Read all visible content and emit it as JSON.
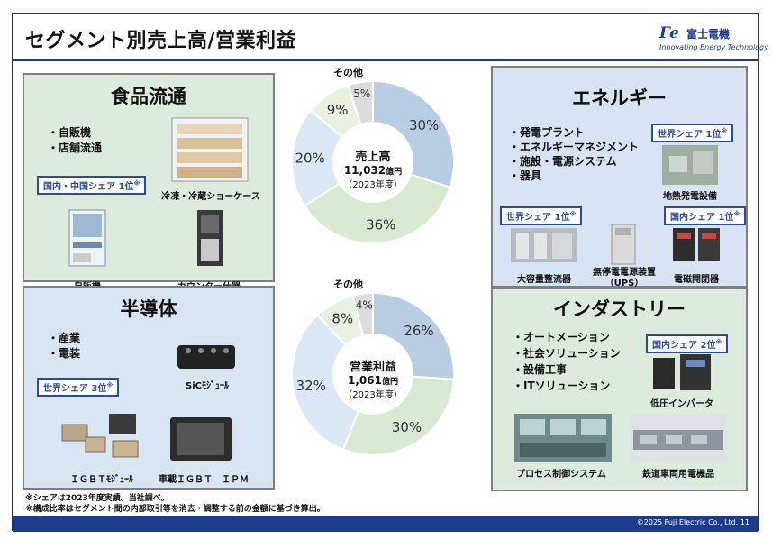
{
  "title": "セグメント別売上高/営業利益",
  "logo": {
    "name": "富士電機",
    "tagline": "Innovating Energy Technology",
    "mark": "Fe"
  },
  "food": {
    "heading": "食品流通",
    "bullets": [
      "自販機",
      "店舗流通"
    ],
    "badge": "国内・中国シェア 1位",
    "mark": "※",
    "captions": {
      "showcase": "冷凍・冷蔵ショーケース",
      "vending": "自販機",
      "counter": "カウンター什器"
    }
  },
  "semi": {
    "heading": "半導体",
    "bullets": [
      "産業",
      "電装"
    ],
    "badge": "世界シェア 3位",
    "mark": "※",
    "captions": {
      "sic": "SiCﾓｼﾞｭｰﾙ",
      "igbt": "ＩＧＢＴﾓｼﾞｭｰﾙ",
      "ipm": "車載ＩＧＢＴ　ＩＰＭ"
    }
  },
  "energy": {
    "heading": "エネルギー",
    "bullets": [
      "発電プラント",
      "エネルギーマネジメント",
      "施設・電源システム",
      "器具"
    ],
    "badge_world": "世界シェア 1位",
    "badge_world2": "世界シェア 1位",
    "badge_domestic": "国内シェア 1位",
    "mark": "※",
    "captions": {
      "geo": "地熱発電設備",
      "rect": "大容量整流器",
      "ups1": "無停電電源装置",
      "ups2": "（UPS）",
      "switch": "電磁開閉器"
    }
  },
  "industry": {
    "heading": "インダストリー",
    "bullets": [
      "オートメーション",
      "社会ソリューション",
      "設備工事",
      "ITソリューション"
    ],
    "badge": "国内シェア 2位",
    "mark": "※",
    "captions": {
      "inverter": "低圧インバータ",
      "control": "プロセス制御システム",
      "rail": "鉄道車両用電機品"
    }
  },
  "chart_data": [
    {
      "type": "pie",
      "center_title": "売上高",
      "center_value": "11,032",
      "center_unit": "億円",
      "center_note": "（2023年度）",
      "slices": [
        {
          "name": "エネルギー",
          "value": 30,
          "label": "30%",
          "color": "#b8cce4"
        },
        {
          "name": "インダストリー",
          "value": 36,
          "label": "36%",
          "color": "#d8ead2"
        },
        {
          "name": "半導体",
          "value": 20,
          "label": "20%",
          "color": "#dbe9f6"
        },
        {
          "name": "食品流通",
          "value": 9,
          "label": "9%",
          "color": "#e8f2e2"
        },
        {
          "name": "その他",
          "value": 5,
          "label": "5%",
          "color": "#dcdcdc"
        }
      ],
      "other_label": "その他"
    },
    {
      "type": "pie",
      "center_title": "営業利益",
      "center_value": "1,061",
      "center_unit": "億円",
      "center_note": "（2023年度）",
      "slices": [
        {
          "name": "エネルギー",
          "value": 26,
          "label": "26%",
          "color": "#b8cce4"
        },
        {
          "name": "インダストリー",
          "value": 30,
          "label": "30%",
          "color": "#d8ead2"
        },
        {
          "name": "半導体",
          "value": 32,
          "label": "32%",
          "color": "#dbe9f6"
        },
        {
          "name": "食品流通",
          "value": 8,
          "label": "8%",
          "color": "#e8f2e2"
        },
        {
          "name": "その他",
          "value": 4,
          "label": "4%",
          "color": "#dcdcdc"
        }
      ],
      "other_label": "その他"
    }
  ],
  "notes": [
    "※シェアは2023年度実績。当社調べ。",
    "※構成比率はセグメント間の内部取引等を消去・調整する前の金額に基づき算出。"
  ],
  "footer": "©2025 Fuji Electric Co., Ltd.  11"
}
